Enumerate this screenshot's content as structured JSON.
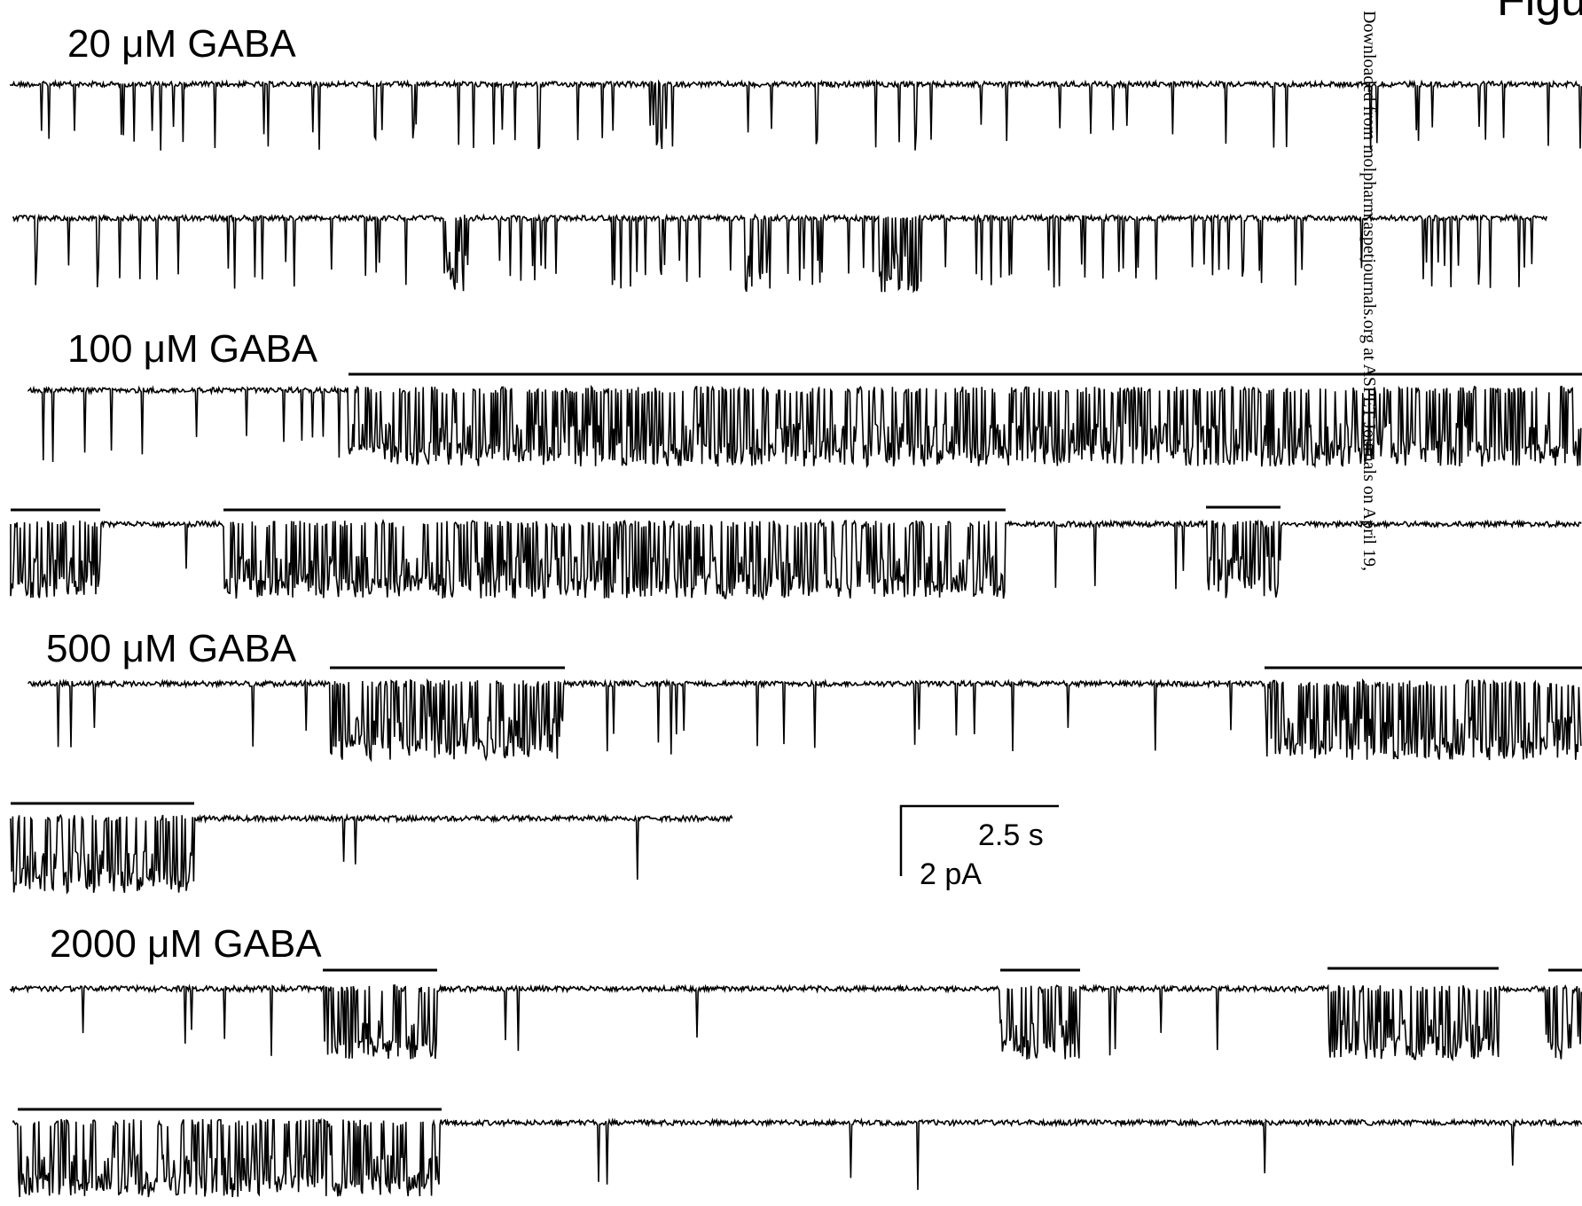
{
  "figure_label": "Figu",
  "watermark": "Downloaded from molpharm.aspetjournals.org at ASPET Journals on April 19,",
  "conditions": [
    {
      "label": "20 μM GABA"
    },
    {
      "label": "100 μM GABA"
    },
    {
      "label": "500 μM GABA"
    },
    {
      "label": "2000 μM GABA"
    }
  ],
  "scale_bar": {
    "time": "2.5 s",
    "current": "2 pA"
  }
}
